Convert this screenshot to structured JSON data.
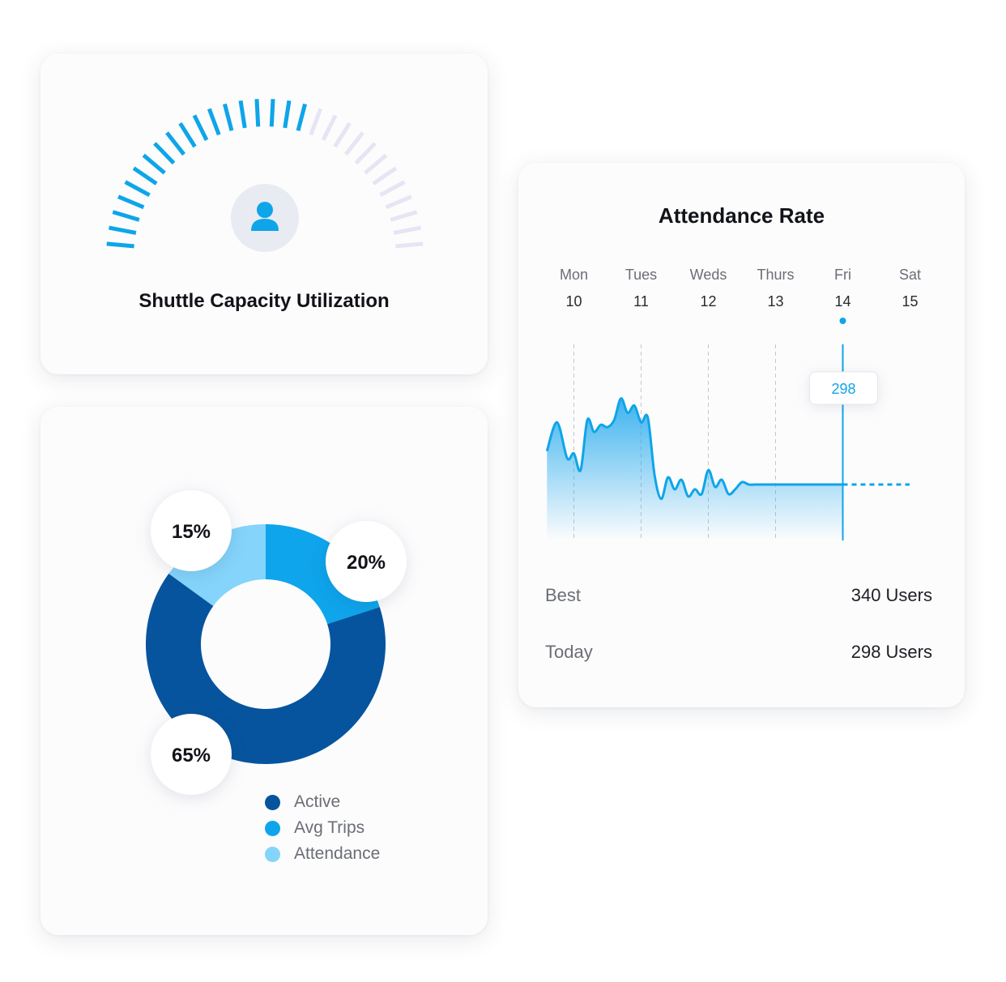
{
  "gauge": {
    "title": "Shuttle Capacity Utilization",
    "icon": "user-icon",
    "ticks_total": 30,
    "ticks_filled": 18,
    "active_color": "#0ea5e9",
    "inactive_color": "#e8e4f3"
  },
  "donut_chart": {
    "legend": [
      {
        "label": "Active",
        "color": "#06549e"
      },
      {
        "label": "Avg Trips",
        "color": "#0ea5ec"
      },
      {
        "label": "Attendance",
        "color": "#84d4fb"
      }
    ]
  },
  "chart_data": [
    {
      "type": "pie",
      "categories": [
        "Active",
        "Avg Trips",
        "Attendance"
      ],
      "values": [
        65,
        20,
        15
      ],
      "labels": [
        "65%",
        "20%",
        "15%"
      ],
      "colors": [
        "#06549e",
        "#0ea5ec",
        "#84d4fb"
      ],
      "donut": true
    },
    {
      "type": "area",
      "title": "Attendance Rate",
      "days": [
        {
          "name": "Mon",
          "date": "10"
        },
        {
          "name": "Tues",
          "date": "11"
        },
        {
          "name": "Weds",
          "date": "12"
        },
        {
          "name": "Thurs",
          "date": "13"
        },
        {
          "name": "Fri",
          "date": "14"
        },
        {
          "name": "Sat",
          "date": "15"
        }
      ],
      "x": [
        9.6,
        9.75,
        9.9,
        10.0,
        10.1,
        10.2,
        10.3,
        10.4,
        10.5,
        10.6,
        10.7,
        10.8,
        10.9,
        11.0,
        11.1,
        11.2,
        11.3,
        11.4,
        11.5,
        11.6,
        11.7,
        11.8,
        11.9,
        12.0,
        12.1,
        12.2,
        12.3,
        12.4,
        12.5,
        12.6,
        12.7,
        12.8,
        12.9,
        13.0,
        13.1,
        13.2,
        13.3,
        13.4,
        13.5,
        13.6,
        13.7,
        13.8,
        13.9,
        14.0
      ],
      "values": [
        312,
        324,
        309,
        311,
        304,
        325,
        320,
        323,
        322,
        325,
        334,
        328,
        331,
        324,
        326,
        302,
        292,
        301,
        296,
        300,
        293,
        296,
        294,
        304,
        297,
        300,
        294,
        296,
        299,
        298,
        298,
        298,
        298,
        298,
        298,
        298,
        298,
        298,
        298,
        298,
        298,
        298,
        298,
        298
      ],
      "selected_day": "14",
      "selected_value": 298,
      "tooltip": "298",
      "accent_color": "#0ea5e9",
      "stats": [
        {
          "label": "Best",
          "value": "340 Users"
        },
        {
          "label": "Today",
          "value": "298 Users"
        }
      ]
    }
  ]
}
